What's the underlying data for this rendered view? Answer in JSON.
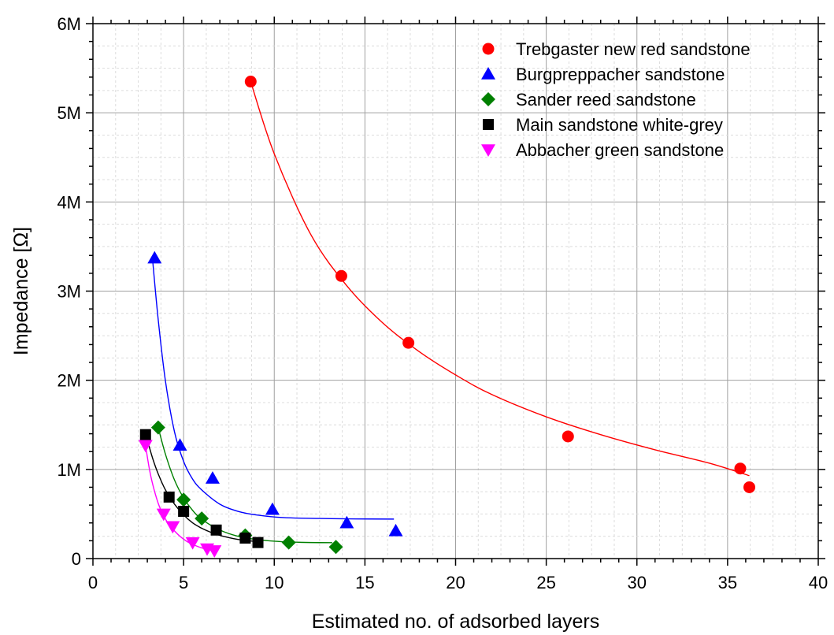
{
  "chart_data": {
    "type": "scatter",
    "title": "",
    "xlabel": "Estimated no. of adsorbed layers",
    "ylabel": "Impedance [Ω]",
    "xlim": [
      0,
      40
    ],
    "ylim": [
      0,
      6000000
    ],
    "x_ticks": [
      0,
      5,
      10,
      15,
      20,
      25,
      30,
      35,
      40
    ],
    "x_tick_labels": [
      "0",
      "5",
      "10",
      "15",
      "20",
      "25",
      "30",
      "35",
      "40"
    ],
    "y_ticks": [
      0,
      1000000,
      2000000,
      3000000,
      4000000,
      5000000,
      6000000
    ],
    "y_tick_labels": [
      "0",
      "1M",
      "2M",
      "3M",
      "4M",
      "5M",
      "6M"
    ],
    "grid": true,
    "legend_position": "top-right",
    "series": [
      {
        "name": "Trebgaster new red sandstone",
        "color": "#ff0000",
        "marker": "circle",
        "x": [
          8.7,
          13.7,
          17.4,
          26.2,
          35.7,
          36.2
        ],
        "y": [
          5350000,
          3170000,
          2420000,
          1370000,
          1010000,
          800000
        ],
        "fit": {
          "x_range": [
            8.7,
            36.2
          ],
          "x": [
            8.7,
            10,
            12,
            14,
            16,
            18,
            20,
            22,
            25,
            28,
            31,
            34,
            36.2
          ],
          "y": [
            5350000,
            4540000,
            3640000,
            3060000,
            2640000,
            2320000,
            2060000,
            1840000,
            1590000,
            1390000,
            1220000,
            1070000,
            930000
          ]
        }
      },
      {
        "name": "Burgpreppacher sandstone",
        "color": "#0000ff",
        "marker": "triangle-up",
        "x": [
          3.4,
          4.8,
          6.6,
          9.9,
          14.0,
          16.7
        ],
        "y": [
          3370000,
          1270000,
          900000,
          550000,
          400000,
          310000
        ],
        "fit": {
          "x_range": [
            3.3,
            16.6
          ],
          "x": [
            3.3,
            3.6,
            4.0,
            4.5,
            5.0,
            5.5,
            6.0,
            7.0,
            8.0,
            9.0,
            10.5,
            12.5,
            14.5,
            16.6
          ],
          "y": [
            3330000,
            2680000,
            1990000,
            1420000,
            1090000,
            890000,
            770000,
            610000,
            530000,
            490000,
            460000,
            450000,
            445000,
            443000
          ]
        }
      },
      {
        "name": "Sander reed sandstone",
        "color": "#008000",
        "marker": "diamond",
        "x": [
          3.6,
          5.0,
          6.0,
          8.4,
          10.8,
          13.4
        ],
        "y": [
          1470000,
          660000,
          450000,
          260000,
          180000,
          130000
        ],
        "fit": {
          "x_range": [
            3.6,
            13.2
          ],
          "x": [
            3.6,
            4.0,
            4.5,
            5.0,
            5.5,
            6.0,
            7.0,
            8.0,
            9.0,
            10.0,
            11.0,
            12.0,
            13.2
          ],
          "y": [
            1470000,
            1170000,
            880000,
            680000,
            540000,
            440000,
            320000,
            250000,
            215000,
            195000,
            185000,
            180000,
            178000
          ]
        }
      },
      {
        "name": "Main sandstone white-grey",
        "color": "#000000",
        "marker": "square",
        "x": [
          2.9,
          4.2,
          5.0,
          6.8,
          8.4,
          9.1
        ],
        "y": [
          1390000,
          690000,
          530000,
          320000,
          230000,
          180000
        ],
        "fit": {
          "x_range": [
            3.0,
            9.1
          ],
          "x": [
            3.0,
            3.3,
            3.6,
            4.0,
            4.5,
            5.0,
            5.5,
            6.0,
            6.5,
            7.0,
            7.5,
            8.0,
            8.5,
            9.1
          ],
          "y": [
            1330000,
            1120000,
            950000,
            770000,
            610000,
            490000,
            400000,
            340000,
            295000,
            260000,
            235000,
            215000,
            200000,
            190000
          ]
        }
      },
      {
        "name": "Abbacher green sandstone",
        "color": "#ff00ff",
        "marker": "triangle-down",
        "x": [
          2.9,
          3.9,
          4.4,
          5.5,
          6.3,
          6.7
        ],
        "y": [
          1270000,
          500000,
          360000,
          180000,
          110000,
          90000
        ],
        "fit": {
          "x_range": [
            2.9,
            6.8
          ],
          "x": [
            2.9,
            3.1,
            3.3,
            3.6,
            3.9,
            4.2,
            4.5,
            4.8,
            5.2,
            5.6,
            6.0,
            6.4,
            6.8
          ],
          "y": [
            1270000,
            1020000,
            830000,
            620000,
            480000,
            380000,
            310000,
            250000,
            190000,
            150000,
            120000,
            100000,
            85000
          ]
        }
      }
    ]
  }
}
